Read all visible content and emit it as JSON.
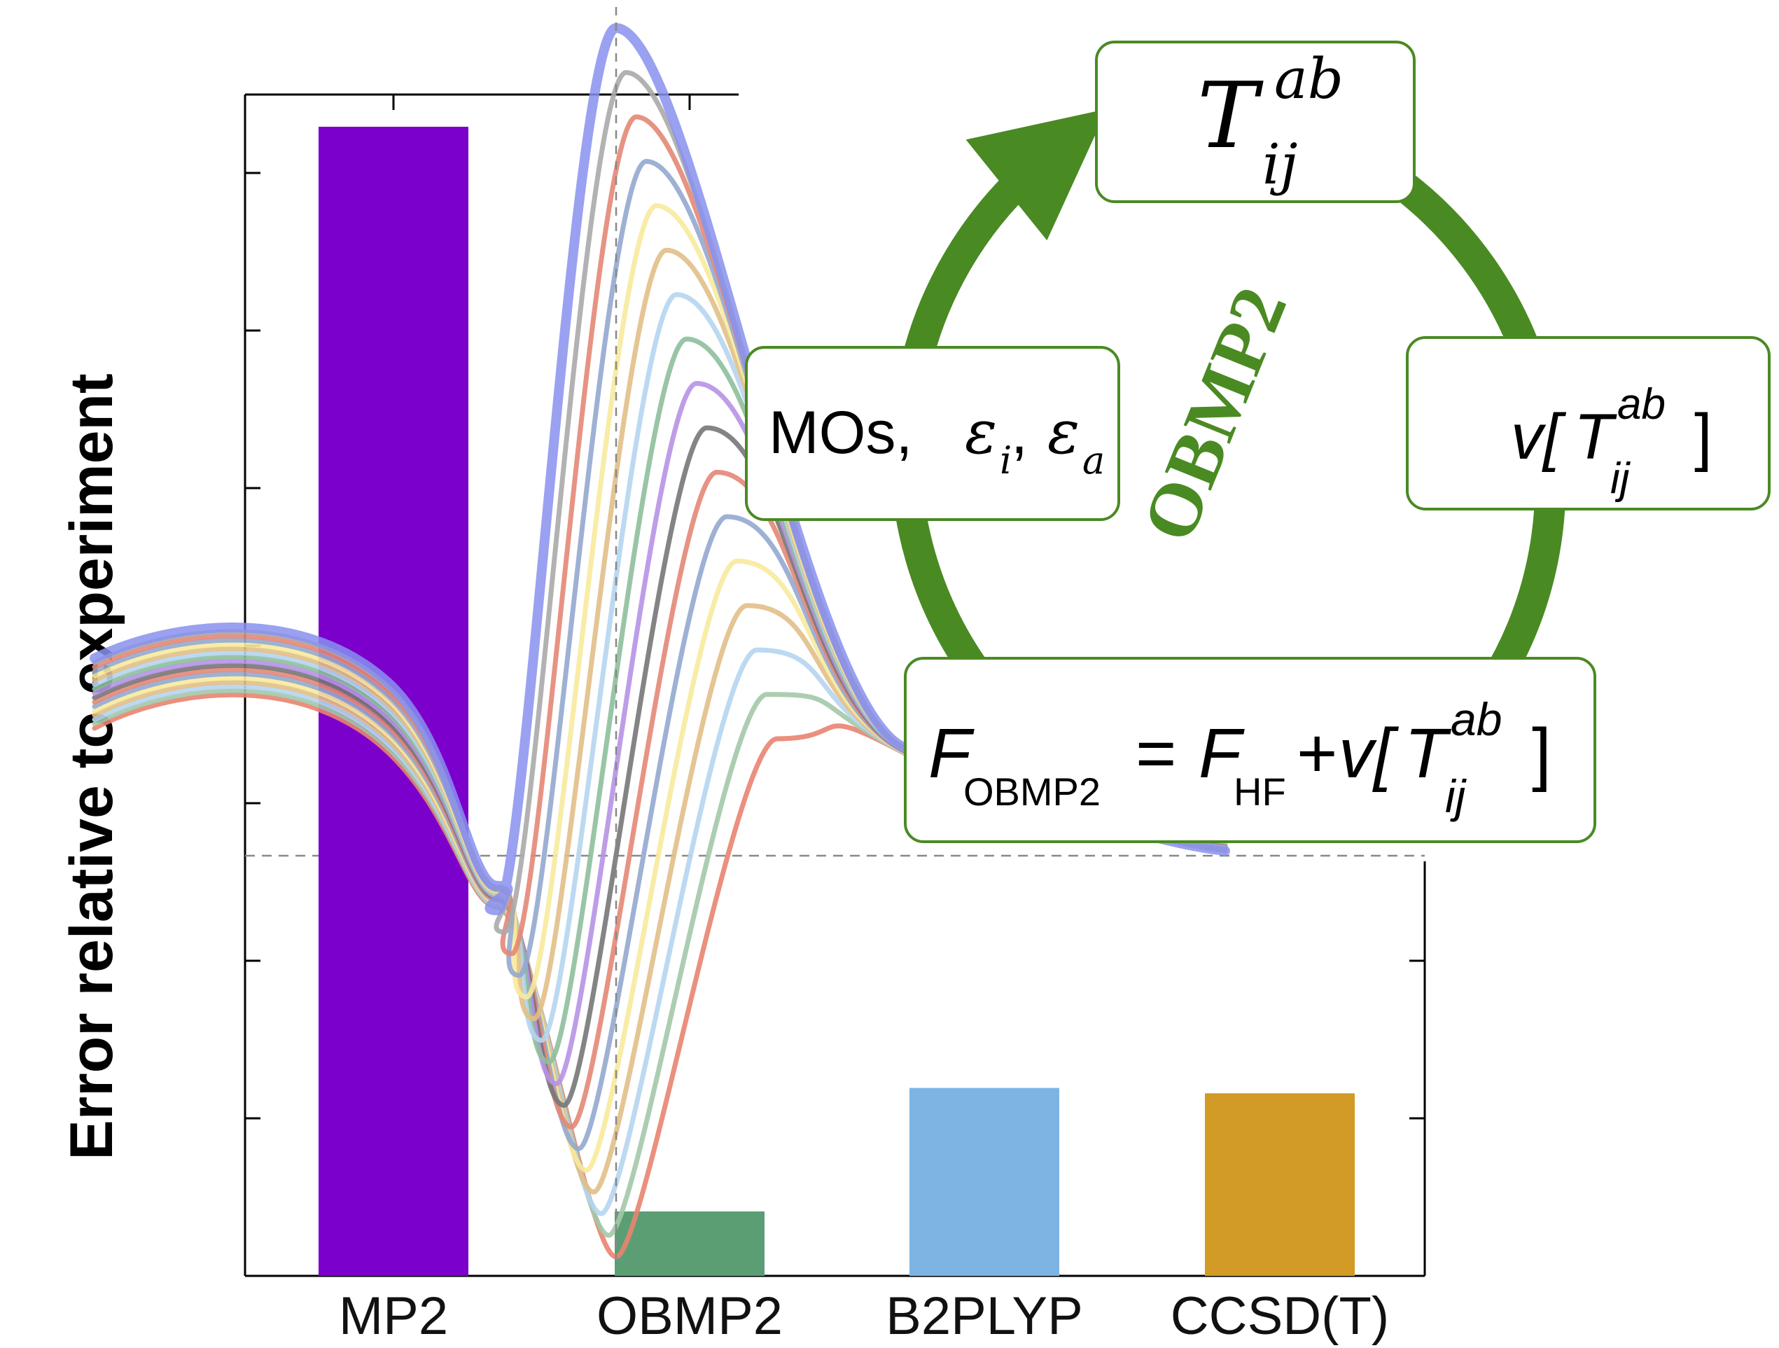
{
  "chart_data": {
    "type": "bar",
    "ylabel": "Error relative to experiment",
    "xlabel": "",
    "categories": [
      "MP2",
      "OBMP2",
      "B2PLYP",
      "CCSD(T)"
    ],
    "values": [
      8.7,
      -1.4,
      -0.25,
      -0.3
    ],
    "ylim": [
      -2.0,
      9.0
    ],
    "grid": false,
    "bar_colors": [
      "#7b00cc",
      "#5b9e74",
      "#7cb4e4",
      "#d29b26"
    ],
    "overlay_curves": {
      "count": 17,
      "colors": [
        "#e98370",
        "#a3c8a8",
        "#b5d5ef",
        "#e1bf87",
        "#f7ea9c",
        "#93a9cf",
        "#e48777",
        "#777777",
        "#b792e6",
        "#8ebf9c",
        "#b5d5ef",
        "#e1bf87",
        "#f7ea9c",
        "#93a9cf",
        "#e48777",
        "#aaaaaa",
        "#8891ef"
      ]
    }
  },
  "cycle": {
    "title": "OBMP2",
    "t_amplitude": {
      "main": "T",
      "sup": "ab",
      "sub": "ij"
    },
    "potential": {
      "v": "v[",
      "T": "T",
      "sup": "ab",
      "sub": "ij",
      "close": "]"
    },
    "mos": {
      "text": "MOs, ",
      "eps": "ε",
      "sub_i": "i",
      "comma": ",",
      "sub_a": "a"
    },
    "fock": {
      "F": "F",
      "sub_obmp2": "OBMP2",
      "eq": "=",
      "F2": "F",
      "sub_hf": "HF",
      "plus": "+",
      "v": "v[",
      "T": "T",
      "sup": "ab",
      "sub": "ij",
      "close": "]"
    },
    "accent_color": "#4a8a23"
  }
}
